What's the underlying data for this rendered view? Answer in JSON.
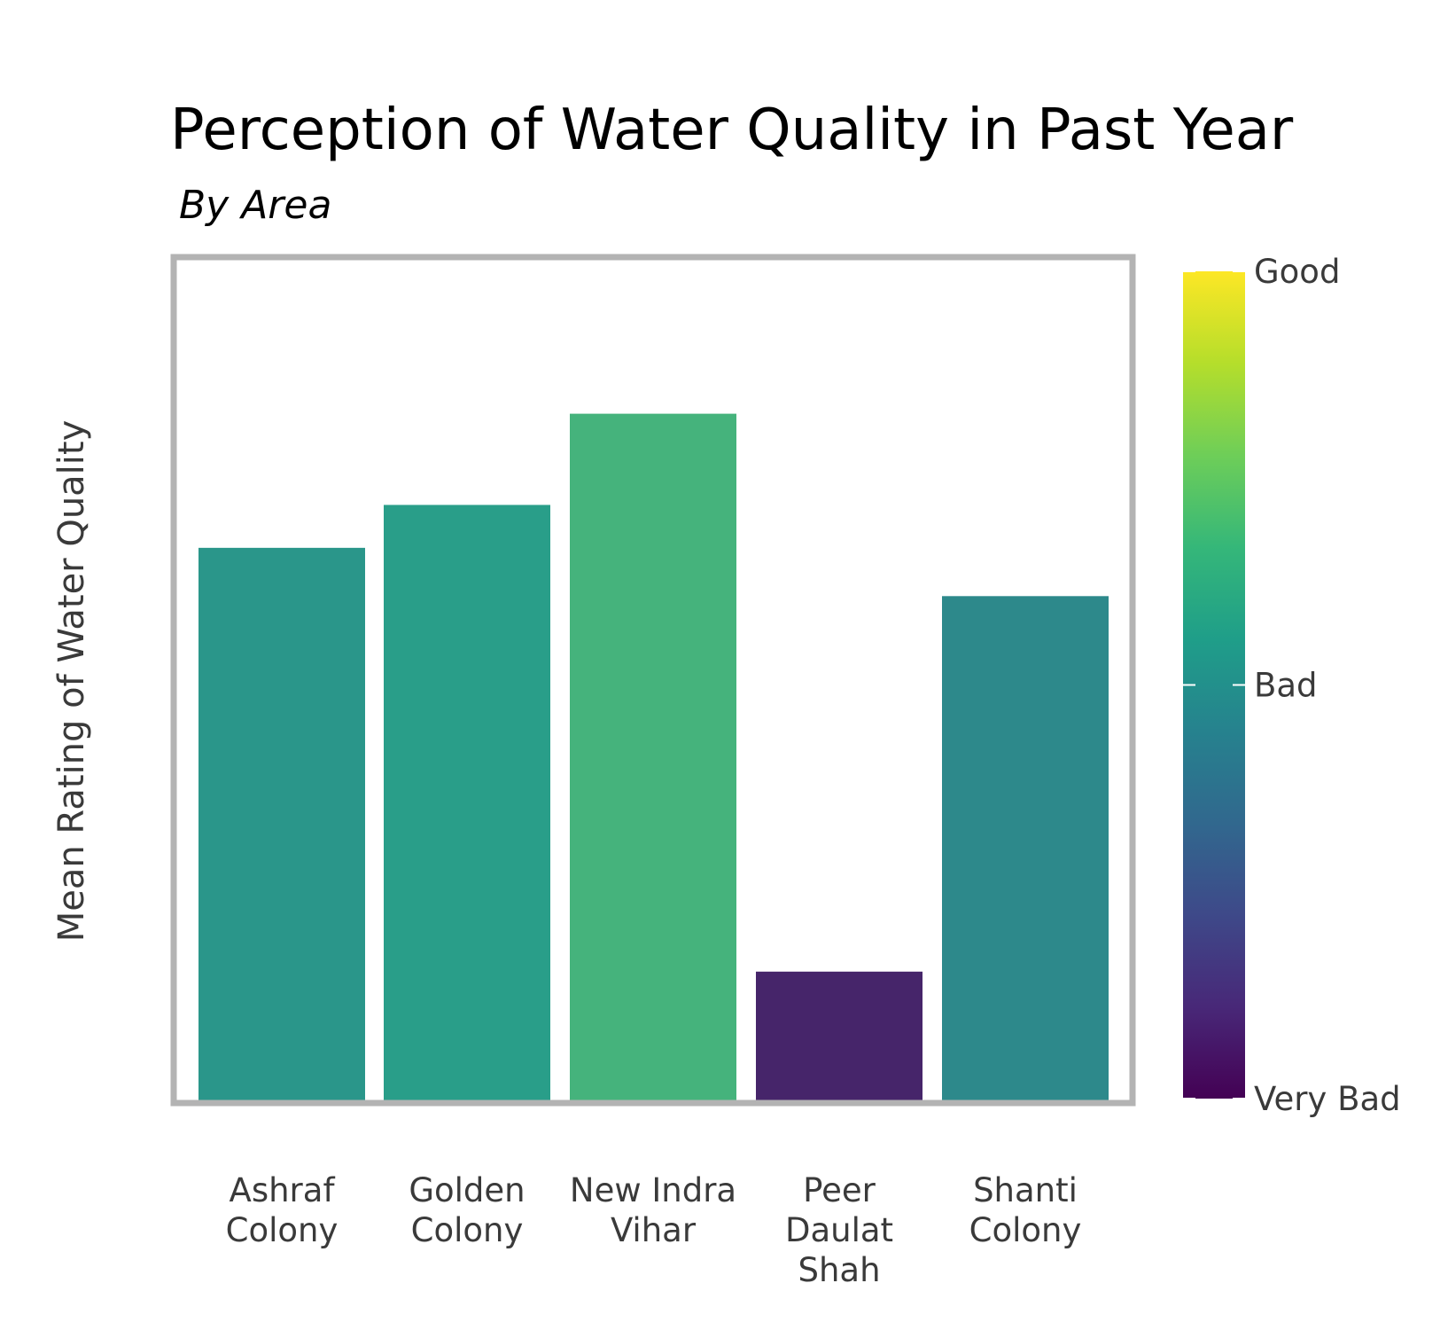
{
  "chart_data": {
    "type": "bar",
    "title": "Perception of Water Quality in Past Year",
    "subtitle": "By Area",
    "xlabel": "",
    "ylabel": "Mean Rating of Water Quality",
    "categories": [
      [
        "Ashraf",
        "Colony"
      ],
      [
        "Golden",
        "Colony"
      ],
      [
        "New Indra",
        "Vihar"
      ],
      [
        "Peer",
        "Daulat",
        "Shah"
      ],
      [
        "Shanti",
        "Colony"
      ]
    ],
    "values": [
      2.03,
      2.11,
      2.28,
      1.24,
      1.94
    ],
    "ylim": [
      1.0,
      3.0
    ],
    "bar_colors": [
      "#2a968a",
      "#299e89",
      "#45b37c",
      "#46256a",
      "#2d898b"
    ],
    "grid": false,
    "colorbar": {
      "min": 1.0,
      "max": 3.0,
      "ticks": [
        {
          "value": 1.0,
          "label": "Very Bad"
        },
        {
          "value": 2.0,
          "label": "Bad"
        },
        {
          "value": 3.0,
          "label": "Good"
        }
      ],
      "colors": [
        "#440154",
        "#482878",
        "#3e4989",
        "#31688e",
        "#26828e",
        "#1f9e89",
        "#35b779",
        "#6ece58",
        "#b5de2b",
        "#fde725"
      ]
    }
  }
}
